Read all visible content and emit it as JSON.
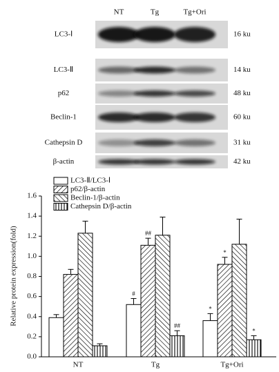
{
  "blot": {
    "columns": [
      "NT",
      "Tg",
      "Tg+Ori"
    ],
    "rows": [
      {
        "label": "LC3-Ⅰ",
        "size": "16 ku"
      },
      {
        "label": "LC3-Ⅱ",
        "size": "14 ku"
      },
      {
        "label": "p62",
        "size": "48 ku"
      },
      {
        "label": "Beclin-1",
        "size": "60 ku"
      },
      {
        "label": "Cathepsin D",
        "size": "31 ku"
      },
      {
        "label": "β-actin",
        "size": "42 ku"
      }
    ]
  },
  "chart_data": {
    "type": "bar",
    "y_label": "Relative protein expression(fold)",
    "categories": [
      "NT",
      "Tg",
      "Tg+Ori"
    ],
    "series": [
      {
        "name": "LC3-Ⅱ/LC3-Ⅰ",
        "pattern": "none",
        "color": "#000000",
        "values": [
          0.39,
          0.52,
          0.36
        ],
        "errors": [
          0.03,
          0.06,
          0.07
        ],
        "annotations": [
          null,
          "#",
          "*"
        ]
      },
      {
        "name": "p62/β-actin",
        "pattern": "forward-diagonal",
        "color": "#000000",
        "values": [
          0.82,
          1.11,
          0.92
        ],
        "errors": [
          0.05,
          0.07,
          0.07
        ],
        "annotations": [
          null,
          "##",
          "*"
        ]
      },
      {
        "name": "Beclin-1/β-actin",
        "pattern": "back-diagonal",
        "color": "#000000",
        "values": [
          1.23,
          1.21,
          1.12
        ],
        "errors": [
          0.12,
          0.18,
          0.25
        ],
        "annotations": [
          null,
          null,
          null
        ]
      },
      {
        "name": "Cathepsin D/β-actin",
        "pattern": "vertical",
        "color": "#000000",
        "values": [
          0.11,
          0.21,
          0.17
        ],
        "errors": [
          0.02,
          0.05,
          0.04
        ],
        "annotations": [
          null,
          "##",
          "*"
        ]
      }
    ],
    "ylim": [
      0,
      1.6
    ],
    "yticks": [
      {
        "value": 0,
        "label": "0.0"
      },
      {
        "value": 0.2,
        "label": "0.2"
      },
      {
        "value": 0.4,
        "label": "0.4"
      },
      {
        "value": 0.6,
        "label": "0.6"
      },
      {
        "value": 0.8,
        "label": "0.8"
      },
      {
        "value": 1.0,
        "label": "1.0"
      },
      {
        "value": 1.2,
        "label": "1.2"
      },
      {
        "value": 1.4,
        "label": "1.4"
      },
      {
        "value": 1.6,
        "label": "1.6"
      }
    ],
    "legend": "upper left"
  }
}
